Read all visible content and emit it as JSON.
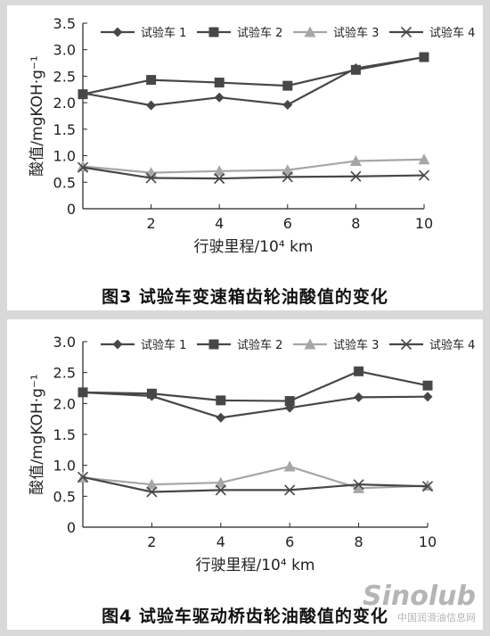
{
  "colors": {
    "dark_series": "#474747",
    "light_series": "#a6a6a6",
    "axis": "#222222",
    "background": "#ffffff"
  },
  "chart_data": [
    {
      "type": "line",
      "caption": "图3   试验车变速箱齿轮油酸值的变化",
      "xlabel": "行驶里程/10⁴ km",
      "ylabel": "酸值/mgKOH·g⁻¹",
      "xlim": [
        0,
        10
      ],
      "ylim": [
        0,
        3.5
      ],
      "x_ticks": [
        2,
        4,
        6,
        8,
        10
      ],
      "y_ticks": [
        0,
        0.5,
        1.0,
        1.5,
        2.0,
        2.5,
        3.0,
        3.5
      ],
      "y_tick_labels": [
        "0",
        "0.5",
        "1.0",
        "1.5",
        "2.0",
        "2.5",
        "3.0",
        "3.5"
      ],
      "x": [
        0,
        2,
        4,
        6,
        8,
        10
      ],
      "grid": false,
      "legend_position": "top",
      "series": [
        {
          "name": "试验车 1",
          "marker": "diamond",
          "color_key": "dark_series",
          "values": [
            2.18,
            1.95,
            2.1,
            1.96,
            2.65,
            2.86
          ]
        },
        {
          "name": "试验车 2",
          "marker": "square",
          "color_key": "dark_series",
          "values": [
            2.16,
            2.43,
            2.38,
            2.32,
            2.62,
            2.86
          ]
        },
        {
          "name": "试验车 3",
          "marker": "triangle",
          "color_key": "light_series",
          "values": [
            0.8,
            0.68,
            0.71,
            0.73,
            0.9,
            0.93
          ]
        },
        {
          "name": "试验车 4",
          "marker": "x",
          "color_key": "dark_series",
          "values": [
            0.78,
            0.58,
            0.57,
            0.6,
            0.61,
            0.63
          ]
        }
      ]
    },
    {
      "type": "line",
      "caption": "图4   试验车驱动桥齿轮油酸值的变化",
      "xlabel": "行驶里程/10⁴ km",
      "ylabel": "酸值/mgKOH·g⁻¹",
      "xlim": [
        0,
        10
      ],
      "ylim": [
        0,
        3.0
      ],
      "x_ticks": [
        2,
        4,
        6,
        8,
        10
      ],
      "y_ticks": [
        0,
        0.5,
        1.0,
        1.5,
        2.0,
        2.5,
        3.0
      ],
      "y_tick_labels": [
        "0",
        "0.5",
        "1.0",
        "1.5",
        "2.0",
        "2.5",
        "3.0"
      ],
      "x": [
        0,
        2,
        4,
        6,
        8,
        10
      ],
      "grid": false,
      "legend_position": "top",
      "series": [
        {
          "name": "试验车 1",
          "marker": "diamond",
          "color_key": "dark_series",
          "values": [
            2.18,
            2.12,
            1.77,
            1.93,
            2.1,
            2.11
          ]
        },
        {
          "name": "试验车 2",
          "marker": "square",
          "color_key": "dark_series",
          "values": [
            2.18,
            2.16,
            2.05,
            2.04,
            2.52,
            2.29
          ]
        },
        {
          "name": "试验车 3",
          "marker": "triangle",
          "color_key": "light_series",
          "values": [
            0.8,
            0.69,
            0.72,
            0.98,
            0.63,
            0.67
          ]
        },
        {
          "name": "试验车 4",
          "marker": "x",
          "color_key": "dark_series",
          "values": [
            0.81,
            0.57,
            0.6,
            0.6,
            0.69,
            0.66
          ]
        }
      ]
    }
  ],
  "watermark": {
    "brand": "Sinolub",
    "sub": "中国润滑油信息网",
    "domain": ".com"
  }
}
